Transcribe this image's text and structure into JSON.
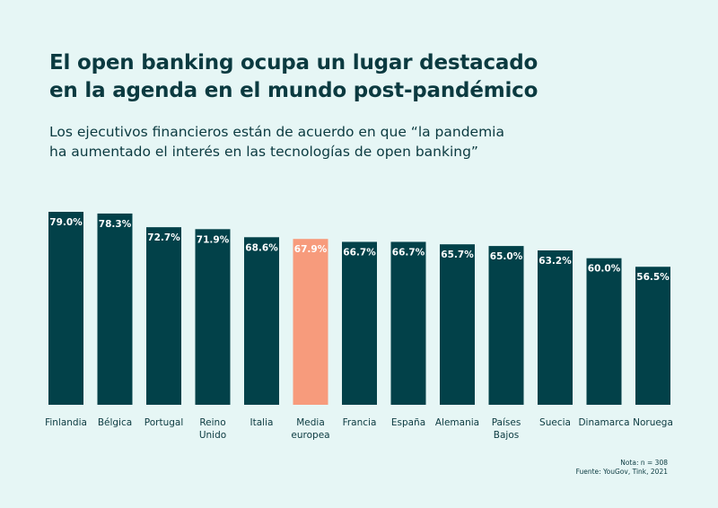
{
  "header": {
    "title_line1": "El open banking ocupa un lugar destacado",
    "title_line2": "en la agenda en el mundo post-pandémico",
    "subtitle_line1": "Los ejecutivos financieros están de acuerdo en que “la pandemia",
    "subtitle_line2": "ha aumentado el interés en las tecnologías de open banking”"
  },
  "colors": {
    "background": "#e6f6f5",
    "bar": "#024149",
    "highlight": "#f79b7c",
    "label_on_bar": "#ffffff",
    "label_on_highlight": "#ffffff"
  },
  "chart_data": {
    "type": "bar",
    "title": "El open banking ocupa un lugar destacado en la agenda en el mundo post-pandémico",
    "xlabel": "",
    "ylabel": "",
    "ylim": [
      0,
      79
    ],
    "grid": false,
    "value_suffix": "%",
    "highlight_category": "Media europea",
    "categories": [
      [
        "Finlandia"
      ],
      [
        "Bélgica"
      ],
      [
        "Portugal"
      ],
      [
        "Reino",
        "Unido"
      ],
      [
        "Italia"
      ],
      [
        "Media",
        "europea"
      ],
      [
        "Francia"
      ],
      [
        "España"
      ],
      [
        "Alemania"
      ],
      [
        "Países",
        "Bajos"
      ],
      [
        "Suecia"
      ],
      [
        "Dinamarca"
      ],
      [
        "Noruega"
      ]
    ],
    "values": [
      79.0,
      78.3,
      72.7,
      71.9,
      68.6,
      67.9,
      66.7,
      66.7,
      65.7,
      65.0,
      63.2,
      60.0,
      56.5
    ],
    "labels": [
      "79.0%",
      "78.3%",
      "72.7%",
      "71.9%",
      "68.6%",
      "67.9%",
      "66.7%",
      "66.7%",
      "65.7%",
      "65.0%",
      "63.2%",
      "60.0%",
      "56.5%"
    ]
  },
  "footer": {
    "note": "Nota: n = 308",
    "source": "Fuente: YouGov, Tink, 2021"
  }
}
